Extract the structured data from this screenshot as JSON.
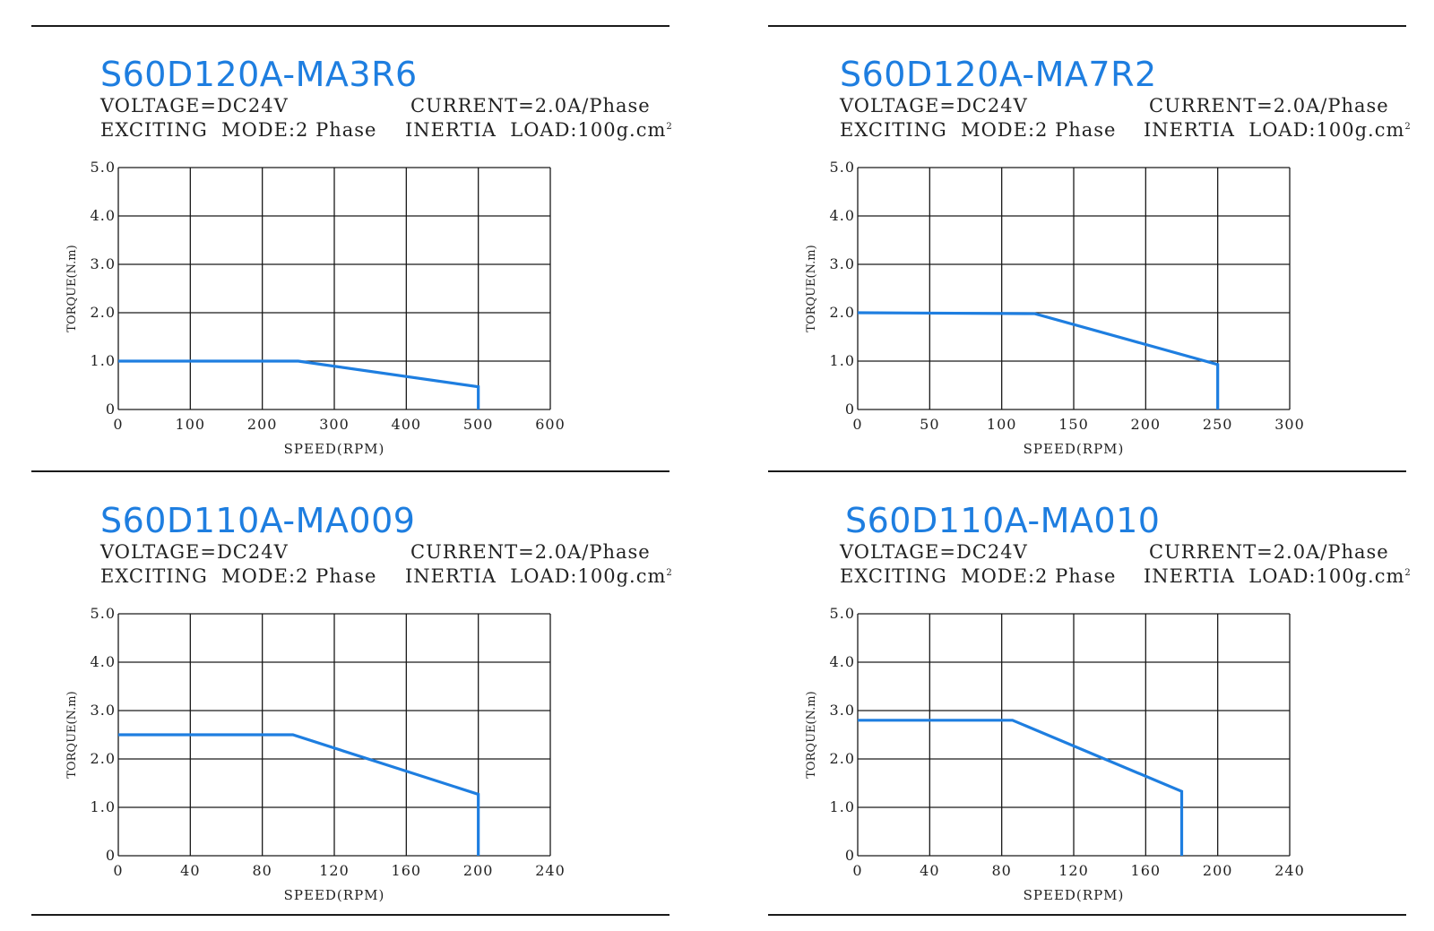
{
  "panels": [
    {
      "title": "S60D120A-MA3R6",
      "voltage": "VOLTAGE=DC24V",
      "current": "CURRENT=2.0A/Phase",
      "mode": "EXCITING  MODE:2 Phase",
      "inertia": "INERTIA  LOAD:100g.cm",
      "inertia_sup": "2",
      "chart_data": {
        "type": "line",
        "xlabel": "SPEED(RPM)",
        "ylabel": "TORQUE(N.m)",
        "xlim": [
          0,
          600
        ],
        "ylim": [
          0,
          5
        ],
        "xticks": [
          0,
          100,
          200,
          300,
          400,
          500,
          600
        ],
        "xtick_labels": [
          "0",
          "100",
          "200",
          "300",
          "400",
          "500",
          "600"
        ],
        "yticks": [
          0,
          1,
          2,
          3,
          4,
          5
        ],
        "ytick_labels": [
          "0",
          "1.0",
          "2.0",
          "3.0",
          "4.0",
          "5.0"
        ],
        "grid": true,
        "series": [
          {
            "x": [
              0,
              250,
              500,
              500
            ],
            "y": [
              1.0,
              1.0,
              0.47,
              0
            ]
          }
        ]
      }
    },
    {
      "title": "S60D120A-MA7R2",
      "voltage": "VOLTAGE=DC24V",
      "current": "CURRENT=2.0A/Phase",
      "mode": "EXCITING  MODE:2 Phase",
      "inertia": "INERTIA  LOAD:100g.cm",
      "inertia_sup": "2",
      "chart_data": {
        "type": "line",
        "xlabel": "SPEED(RPM)",
        "ylabel": "TORQUE(N.m)",
        "xlim": [
          0,
          300
        ],
        "ylim": [
          0,
          5
        ],
        "xticks": [
          0,
          50,
          100,
          150,
          200,
          250,
          300
        ],
        "xtick_labels": [
          "0",
          "50",
          "100",
          "150",
          "200",
          "250",
          "300"
        ],
        "yticks": [
          0,
          1,
          2,
          3,
          4,
          5
        ],
        "ytick_labels": [
          "0",
          "1.0",
          "2.0",
          "3.0",
          "4.0",
          "5.0"
        ],
        "grid": true,
        "series": [
          {
            "x": [
              0,
              123,
              250,
              250
            ],
            "y": [
              2.0,
              1.98,
              0.93,
              0
            ]
          }
        ]
      }
    },
    {
      "title": "S60D110A-MA009",
      "voltage": "VOLTAGE=DC24V",
      "current": "CURRENT=2.0A/Phase",
      "mode": "EXCITING  MODE:2 Phase",
      "inertia": "INERTIA  LOAD:100g.cm",
      "inertia_sup": "2",
      "chart_data": {
        "type": "line",
        "xlabel": "SPEED(RPM)",
        "ylabel": "TORQUE(N.m)",
        "xlim": [
          0,
          240
        ],
        "ylim": [
          0,
          5
        ],
        "xticks": [
          0,
          40,
          80,
          120,
          160,
          200,
          240
        ],
        "xtick_labels": [
          "0",
          "40",
          "80",
          "120",
          "160",
          "200",
          "240"
        ],
        "yticks": [
          0,
          1,
          2,
          3,
          4,
          5
        ],
        "ytick_labels": [
          "0",
          "1.0",
          "2.0",
          "3.0",
          "4.0",
          "5.0"
        ],
        "grid": true,
        "series": [
          {
            "x": [
              0,
              97,
              200,
              200
            ],
            "y": [
              2.5,
              2.5,
              1.27,
              0
            ]
          }
        ]
      }
    },
    {
      "title": "S60D110A-MA010",
      "voltage": "VOLTAGE=DC24V",
      "current": "CURRENT=2.0A/Phase",
      "mode": "EXCITING  MODE:2 Phase",
      "inertia": "INERTIA  LOAD:100g.cm",
      "inertia_sup": "2",
      "chart_data": {
        "type": "line",
        "xlabel": "SPEED(RPM)",
        "ylabel": "TORQUE(N.m)",
        "xlim": [
          0,
          240
        ],
        "ylim": [
          0,
          5
        ],
        "xticks": [
          0,
          40,
          80,
          120,
          160,
          200,
          240
        ],
        "xtick_labels": [
          "0",
          "40",
          "80",
          "120",
          "160",
          "200",
          "240"
        ],
        "yticks": [
          0,
          1,
          2,
          3,
          4,
          5
        ],
        "ytick_labels": [
          "0",
          "1.0",
          "2.0",
          "3.0",
          "4.0",
          "5.0"
        ],
        "grid": true,
        "series": [
          {
            "x": [
              0,
              86,
              180,
              180
            ],
            "y": [
              2.8,
              2.8,
              1.33,
              0
            ]
          }
        ]
      }
    }
  ],
  "colors": {
    "curve": "#1e7ee0",
    "title": "#1e7ee0",
    "grid": "#1a1a1a"
  }
}
